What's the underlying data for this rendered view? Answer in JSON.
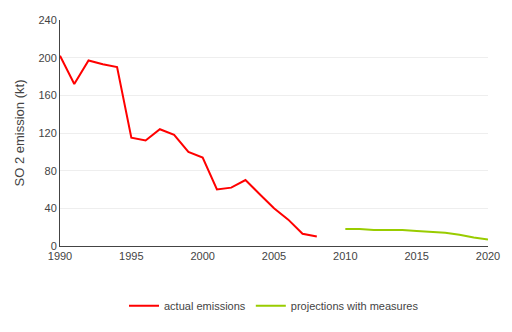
{
  "chart_data": {
    "type": "line",
    "ylabel": "SO 2 emission (kt)",
    "series": [
      {
        "name": "actual emissions",
        "color": "#ff0000",
        "x": [
          1990,
          1991,
          1992,
          1993,
          1994,
          1995,
          1996,
          1997,
          1998,
          1999,
          2000,
          2001,
          2002,
          2003,
          2004,
          2005,
          2006,
          2007,
          2008
        ],
        "values": [
          202,
          172,
          197,
          193,
          190,
          115,
          112,
          124,
          118,
          100,
          94,
          60,
          62,
          70,
          55,
          40,
          28,
          13,
          10
        ]
      },
      {
        "name": "projections with measures",
        "color": "#99cc00",
        "x": [
          2010,
          2011,
          2012,
          2013,
          2014,
          2015,
          2016,
          2017,
          2018,
          2019,
          2020
        ],
        "values": [
          18,
          18,
          17,
          17,
          17,
          16,
          15,
          14,
          12,
          9,
          7
        ]
      }
    ],
    "xlim": [
      1990,
      2020
    ],
    "xticks": [
      1990,
      1995,
      2000,
      2005,
      2010,
      2015,
      2020
    ],
    "ylim": [
      0,
      240
    ],
    "yticks": [
      0,
      40,
      80,
      120,
      160,
      200,
      240
    ],
    "grid": true,
    "legend": "bottom"
  }
}
